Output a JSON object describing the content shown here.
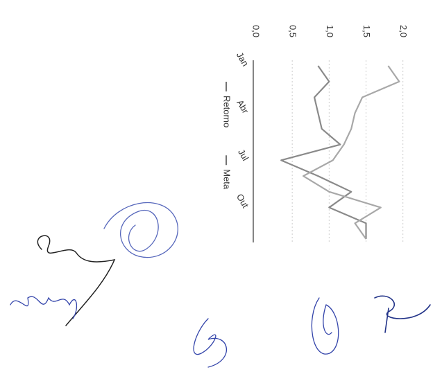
{
  "chart_data": {
    "type": "line",
    "categories": [
      "Jan",
      null,
      null,
      "Abr",
      null,
      null,
      "Jul",
      null,
      null,
      "Out",
      null,
      null
    ],
    "series": [
      {
        "name": "Retorno",
        "color": "#8a8a8a",
        "values": [
          0.85,
          1.0,
          0.8,
          0.85,
          0.9,
          1.15,
          0.35,
          0.85,
          1.3,
          1.0,
          1.5,
          1.5
        ]
      },
      {
        "name": "Meta",
        "color": "#a8a8a8",
        "values": [
          1.8,
          1.95,
          1.45,
          1.35,
          1.3,
          1.2,
          1.05,
          0.65,
          1.0,
          1.7,
          1.35,
          1.5
        ]
      }
    ],
    "ylim": [
      0,
      2.05
    ],
    "yticks": [
      {
        "value": 0,
        "label": "0,0"
      },
      {
        "value": 0.5,
        "label": "0,5"
      },
      {
        "value": 1,
        "label": "1,0"
      },
      {
        "value": 1.5,
        "label": "1,5"
      },
      {
        "value": 2,
        "label": "2,0"
      }
    ],
    "grid": true
  }
}
